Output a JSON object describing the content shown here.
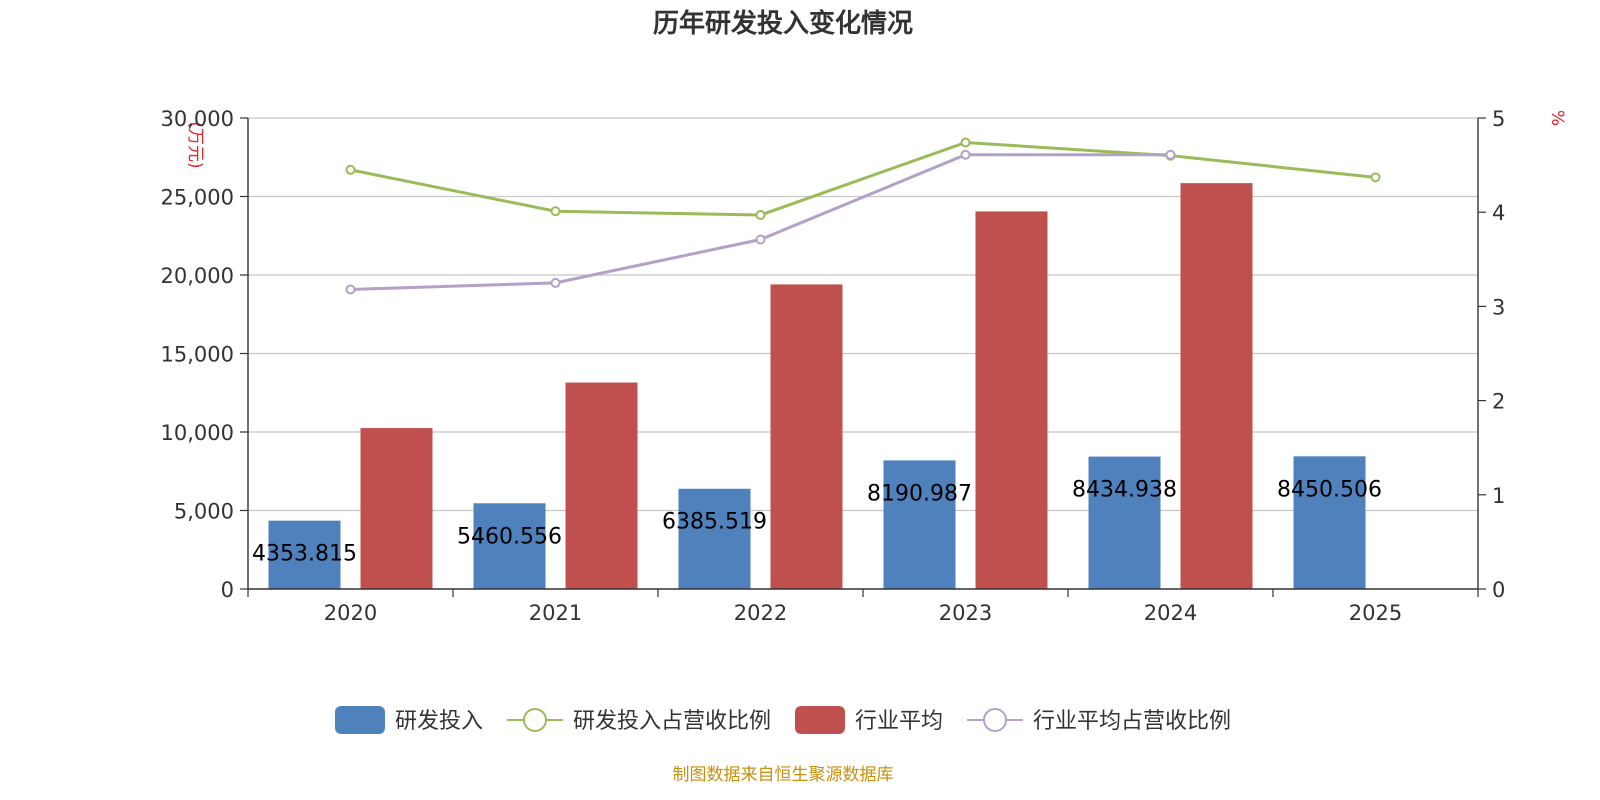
{
  "chart_data": {
    "type": "bar",
    "title": "历年研发投入变化情况",
    "categories": [
      "2020",
      "2021",
      "2022",
      "2023",
      "2024",
      "2025"
    ],
    "y_left": {
      "unit": "(万元)",
      "ylim": [
        0,
        30000
      ],
      "ticks": [
        0,
        5000,
        10000,
        15000,
        20000,
        25000,
        30000
      ],
      "tick_labels": [
        "0",
        "5,000",
        "10,000",
        "15,000",
        "20,000",
        "25,000",
        "30,000"
      ]
    },
    "y_right": {
      "unit": "%",
      "ylim": [
        0,
        5
      ],
      "ticks": [
        0,
        1,
        2,
        3,
        4,
        5
      ],
      "tick_labels": [
        "0",
        "1",
        "2",
        "3",
        "4",
        "5"
      ]
    },
    "grid": true,
    "legend_position": "bottom-center",
    "series": [
      {
        "name": "研发投入",
        "type": "bar",
        "axis": "left",
        "color": "#4F81BD",
        "values": [
          4353.815,
          5460.556,
          6385.519,
          8190.987,
          8434.938,
          8450.506
        ],
        "labels": [
          "4353.815",
          "5460.556",
          "6385.519",
          "8190.987",
          "8434.938",
          "8450.506"
        ]
      },
      {
        "name": "研发投入占营收比例",
        "type": "line",
        "axis": "right",
        "color": "#9BBB59",
        "values": [
          4.45,
          4.01,
          3.97,
          4.74,
          4.6,
          4.37
        ]
      },
      {
        "name": "行业平均",
        "type": "bar",
        "axis": "left",
        "color": "#C0504D",
        "values": [
          10250,
          13150,
          19400,
          24050,
          25850,
          null
        ]
      },
      {
        "name": "行业平均占营收比例",
        "type": "line",
        "axis": "right",
        "color": "#B3A2C7",
        "values": [
          3.18,
          3.25,
          3.71,
          4.61,
          4.61,
          null
        ]
      }
    ],
    "source": "制图数据来自恒生聚源数据库"
  },
  "colors": {
    "left_unit": "#E8212A",
    "right_unit": "#E8212A",
    "source_text": "#C9900C",
    "grid": "#C8C8C8",
    "axis": "#333333"
  }
}
